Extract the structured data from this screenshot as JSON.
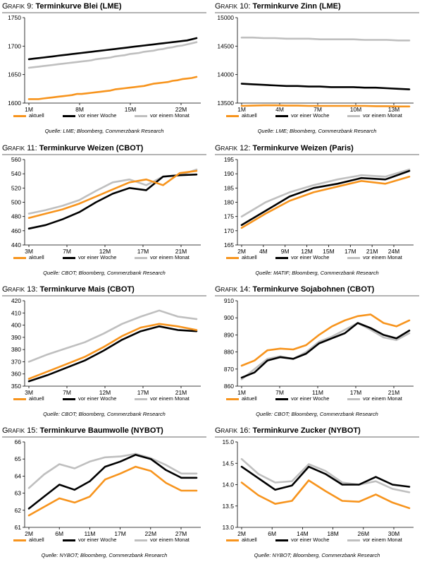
{
  "legend": {
    "a": "aktuell",
    "w": "vor einer Woche",
    "m": "vor einem Monat"
  },
  "colors": {
    "aktuell": "#f7941d",
    "woche": "#000000",
    "monat": "#bfbfbf"
  },
  "chart_data": [
    {
      "type": "line",
      "label_prefix": "Grafik",
      "label_num": "9:",
      "title": "Terminkurve Blei (LME)",
      "x_ticks": [
        "1M",
        "8M",
        "15M",
        "22M"
      ],
      "ylim": [
        1600,
        1750
      ],
      "y_ticks": [
        1600,
        1650,
        1700,
        1750
      ],
      "series": [
        {
          "name": "aktuell",
          "values": [
            1607,
            1607,
            1607,
            1608,
            1609,
            1610,
            1611,
            1612,
            1613,
            1614,
            1616,
            1616,
            1617,
            1618,
            1619,
            1620,
            1621,
            1622,
            1624,
            1625,
            1626,
            1627,
            1628,
            1629,
            1630,
            1632,
            1634,
            1635,
            1636,
            1637,
            1639,
            1640,
            1642,
            1643,
            1644,
            1646
          ]
        },
        {
          "name": "vor einer Woche",
          "values": [
            1677,
            1678,
            1679,
            1680,
            1681,
            1682,
            1683,
            1684,
            1685,
            1686,
            1687,
            1688,
            1689,
            1690,
            1691,
            1692,
            1693,
            1694,
            1695,
            1696,
            1697,
            1698,
            1699,
            1700,
            1701,
            1702,
            1703,
            1704,
            1705,
            1706,
            1707,
            1708,
            1709,
            1710,
            1712,
            1714
          ]
        },
        {
          "name": "vor einem Monat",
          "values": [
            1662,
            1663,
            1664,
            1665,
            1666,
            1667,
            1668,
            1669,
            1670,
            1671,
            1672,
            1673,
            1674,
            1675,
            1677,
            1678,
            1679,
            1680,
            1682,
            1683,
            1684,
            1686,
            1687,
            1688,
            1690,
            1691,
            1692,
            1694,
            1695,
            1697,
            1698,
            1700,
            1701,
            1703,
            1705,
            1707
          ]
        }
      ],
      "source": "Quelle: LME; Bloomberg, Commerzbank Research"
    },
    {
      "type": "line",
      "label_prefix": "Grafik",
      "label_num": "10:",
      "title": "Terminkurve Zinn (LME)",
      "x_ticks": [
        "1M",
        "4M",
        "7M",
        "10M",
        "13M"
      ],
      "ylim": [
        13500,
        15000
      ],
      "y_ticks": [
        13500,
        14000,
        14500,
        15000
      ],
      "series": [
        {
          "name": "aktuell",
          "values": [
            13450,
            13455,
            13460,
            13460,
            13455,
            13455,
            13450,
            13450,
            13450,
            13450,
            13450,
            13450,
            13445,
            13445,
            13440,
            13440
          ]
        },
        {
          "name": "vor einer Woche",
          "values": [
            13840,
            13830,
            13820,
            13810,
            13800,
            13800,
            13790,
            13790,
            13780,
            13780,
            13780,
            13770,
            13770,
            13760,
            13750,
            13740
          ]
        },
        {
          "name": "vor einem Monat",
          "values": [
            14650,
            14650,
            14640,
            14640,
            14630,
            14630,
            14630,
            14620,
            14620,
            14620,
            14620,
            14610,
            14610,
            14610,
            14600,
            14600
          ]
        }
      ],
      "source": "Quelle: LME; Bloomberg, Commerzbank Research"
    },
    {
      "type": "line",
      "label_prefix": "Grafik",
      "label_num": "11:",
      "title": "Terminkurve Weizen (CBOT)",
      "x_ticks": [
        "3M",
        "7M",
        "12M",
        "17M",
        "21M"
      ],
      "ylim": [
        440,
        560
      ],
      "y_ticks": [
        440,
        460,
        480,
        500,
        520,
        540,
        560
      ],
      "series": [
        {
          "name": "aktuell",
          "values": [
            478,
            484,
            490,
            498,
            508,
            518,
            528,
            532,
            524,
            541,
            544
          ]
        },
        {
          "name": "vor einer Woche",
          "values": [
            463,
            468,
            476,
            486,
            500,
            512,
            520,
            517,
            536,
            538,
            539
          ]
        },
        {
          "name": "vor einem Monat",
          "values": [
            484,
            489,
            495,
            503,
            516,
            528,
            532,
            524,
            536,
            538,
            546
          ]
        }
      ],
      "source": "Quelle: CBOT; Bloomberg, Commerzbank Research"
    },
    {
      "type": "line",
      "label_prefix": "Grafik",
      "label_num": "12:",
      "title": "Terminkurve Weizen (Paris)",
      "x_ticks": [
        "2M",
        "4M",
        "9M",
        "12M",
        "15M",
        "17M",
        "21M",
        "24M"
      ],
      "ylim": [
        165,
        195
      ],
      "y_ticks": [
        165,
        170,
        175,
        180,
        185,
        190,
        195
      ],
      "series": [
        {
          "name": "aktuell",
          "values": [
            171,
            176,
            180.5,
            183.5,
            185.5,
            187.5,
            186.5,
            189
          ]
        },
        {
          "name": "vor einer Woche",
          "values": [
            172,
            177,
            182,
            185,
            186.5,
            188.5,
            188,
            191
          ]
        },
        {
          "name": "vor einem Monat",
          "values": [
            175,
            180,
            183.5,
            186,
            188,
            189.5,
            189,
            191.5
          ]
        }
      ],
      "source": "Quelle: MATIF; Bloomberg, Commerzbank Research"
    },
    {
      "type": "line",
      "label_prefix": "Grafik",
      "label_num": "13:",
      "title": "Terminkurve Mais (CBOT)",
      "x_ticks": [
        "3M",
        "7M",
        "12M",
        "17M",
        "21M"
      ],
      "ylim": [
        350,
        420
      ],
      "y_ticks": [
        350,
        360,
        370,
        380,
        390,
        400,
        410,
        420
      ],
      "series": [
        {
          "name": "aktuell",
          "values": [
            356,
            362,
            368,
            374,
            382,
            391,
            398,
            401,
            399,
            396
          ]
        },
        {
          "name": "vor einer Woche",
          "values": [
            354,
            359,
            365,
            371,
            379,
            388,
            395,
            399,
            396,
            395
          ]
        },
        {
          "name": "vor einem Monat",
          "values": [
            370,
            376,
            381,
            386,
            393,
            401,
            407,
            412,
            407,
            405
          ]
        }
      ],
      "source": "Quelle: CBOT; Bloomberg, Commerzbank Research"
    },
    {
      "type": "line",
      "label_prefix": "Grafik",
      "label_num": "14:",
      "title": "Terminkurve Sojabohnen (CBOT)",
      "x_ticks": [
        "1M",
        "7M",
        "11M",
        "17M",
        "21M"
      ],
      "ylim": [
        860,
        910
      ],
      "y_ticks": [
        860,
        870,
        880,
        890,
        900,
        910
      ],
      "series": [
        {
          "name": "aktuell",
          "values": [
            872,
            875,
            881,
            882,
            881.5,
            884,
            890,
            895,
            898.5,
            901,
            902,
            897,
            895,
            898.5
          ]
        },
        {
          "name": "vor einer Woche",
          "values": [
            865,
            868,
            875,
            877,
            876,
            879,
            885,
            888,
            891,
            897,
            894,
            890,
            888,
            892.5
          ]
        },
        {
          "name": "vor einem Monat",
          "values": [
            864,
            870,
            876,
            877.5,
            876,
            880,
            886,
            889,
            893,
            897,
            893,
            888.5,
            887,
            891
          ]
        }
      ],
      "source": "Quelle: CBOT; Bloomberg, Commerzbank Research"
    },
    {
      "type": "line",
      "label_prefix": "Grafik",
      "label_num": "15:",
      "title": "Terminkurve Baumwolle (NYBOT)",
      "x_ticks": [
        "2M",
        "6M",
        "11M",
        "17M",
        "22M",
        "27M"
      ],
      "ylim": [
        61,
        66
      ],
      "y_ticks": [
        61,
        62,
        63,
        64,
        65,
        66
      ],
      "series": [
        {
          "name": "aktuell",
          "values": [
            61.7,
            62.2,
            62.7,
            62.45,
            62.8,
            63.8,
            64.15,
            64.55,
            64.3,
            63.6,
            63.15,
            63.15
          ]
        },
        {
          "name": "vor einer Woche",
          "values": [
            62.1,
            62.8,
            63.5,
            63.2,
            63.7,
            64.55,
            64.85,
            65.25,
            65.0,
            64.35,
            63.9,
            63.9
          ]
        },
        {
          "name": "vor einem Monat",
          "values": [
            63.3,
            64.1,
            64.7,
            64.45,
            64.85,
            65.1,
            65.15,
            65.3,
            65.05,
            64.65,
            64.15,
            64.15
          ]
        }
      ],
      "source": "Quelle: NYBOT; Bloomberg, Commerzbank Research"
    },
    {
      "type": "line",
      "label_prefix": "Grafik",
      "label_num": "16:",
      "title": "Terminkurve Zucker (NYBOT)",
      "x_ticks": [
        "2M",
        "6M",
        "14M",
        "18M",
        "26M",
        "30M"
      ],
      "ylim": [
        13.0,
        15.0
      ],
      "y_ticks": [
        "13.0",
        "13.5",
        "14.0",
        "14.5",
        "15.0"
      ],
      "series": [
        {
          "name": "aktuell",
          "values": [
            14.05,
            13.75,
            13.55,
            13.62,
            14.1,
            13.85,
            13.62,
            13.6,
            13.77,
            13.58,
            13.45
          ]
        },
        {
          "name": "vor einer Woche",
          "values": [
            14.42,
            14.15,
            13.88,
            13.98,
            14.42,
            14.25,
            14.0,
            14.0,
            14.18,
            14.0,
            13.95
          ]
        },
        {
          "name": "vor einem Monat",
          "values": [
            14.6,
            14.25,
            14.05,
            14.08,
            14.48,
            14.32,
            14.05,
            14.0,
            14.08,
            13.9,
            13.82
          ]
        }
      ],
      "source": "Quelle: NYBOT; Bloomberg, Commerzbank Research"
    }
  ]
}
